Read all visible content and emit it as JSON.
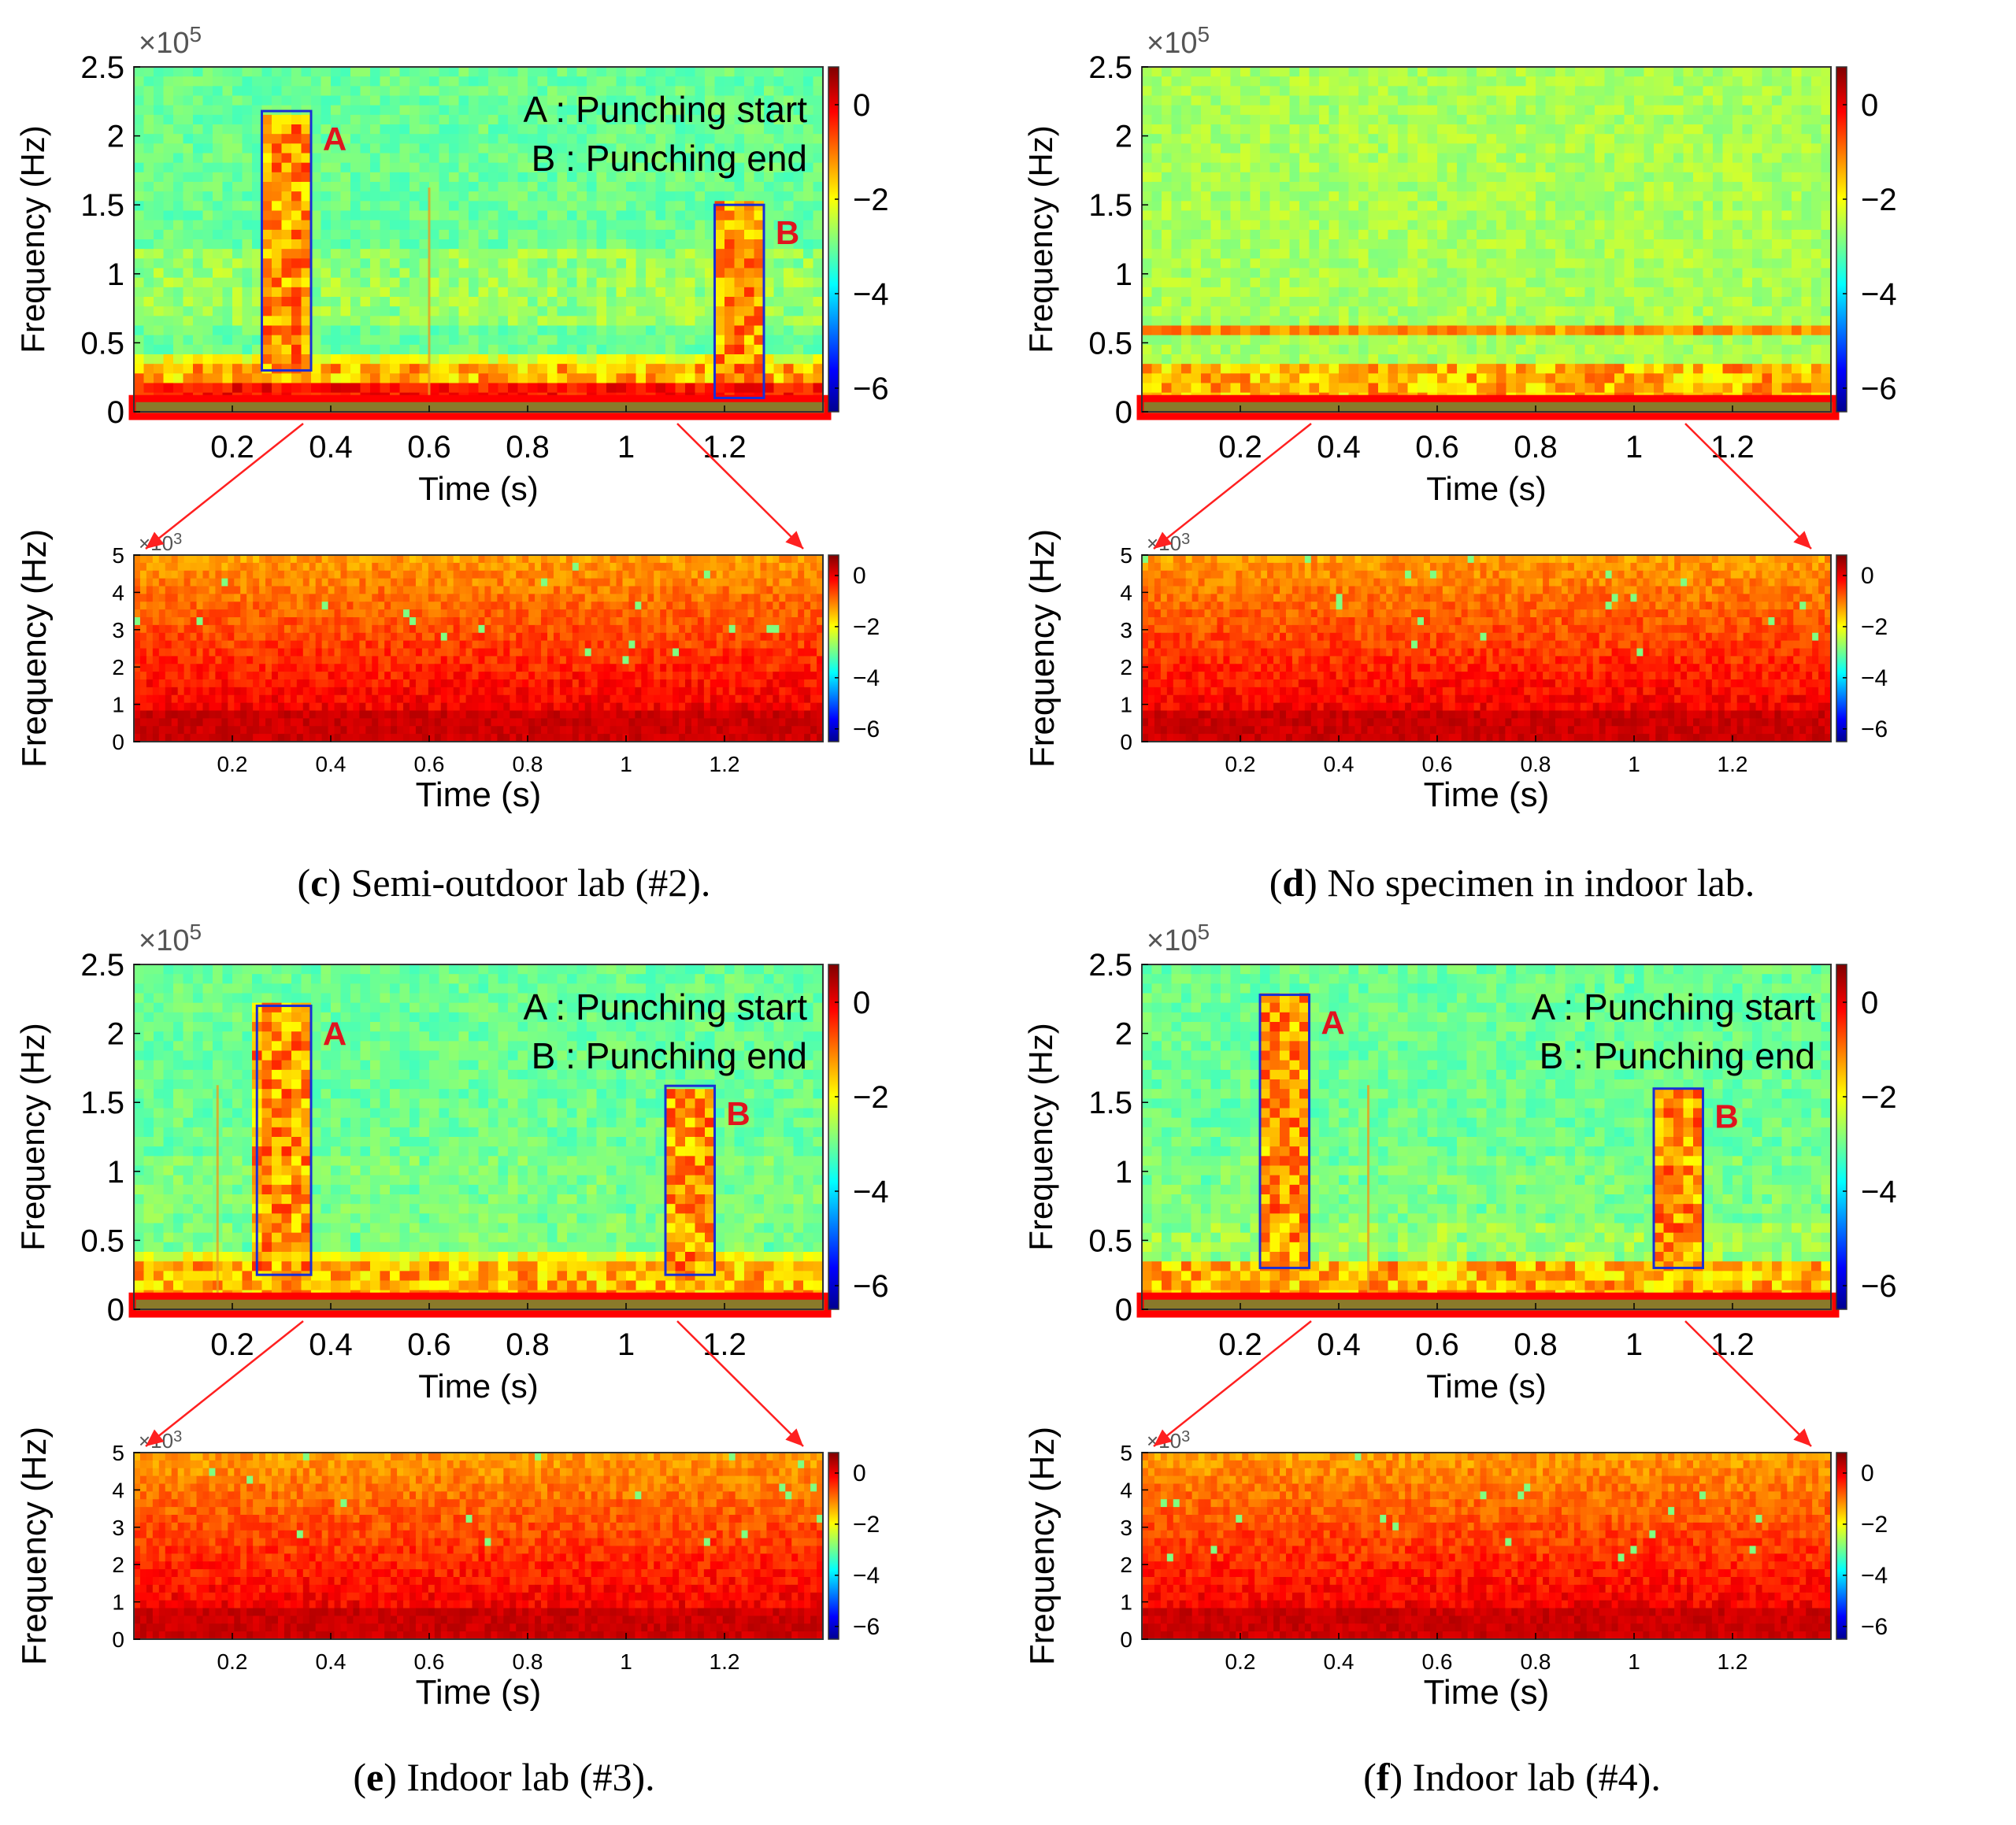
{
  "chart_data": [
    {
      "id": "c",
      "type": "heatmap",
      "caption_letter": "c",
      "caption_text": " Semi-outdoor lab (#2).",
      "top": {
        "xlabel": "Time (s)",
        "ylabel": "Frequency (Hz)",
        "xticks": [
          "0.2",
          "0.4",
          "0.6",
          "0.8",
          "1",
          "1.2"
        ],
        "xtick_values": [
          0.2,
          0.4,
          0.6,
          0.8,
          1.0,
          1.2
        ],
        "xlim": [
          0,
          1.4
        ],
        "yticks": [
          "0",
          "0.5",
          "1",
          "1.5",
          "2",
          "2.5"
        ],
        "ytick_values": [
          0,
          0.5,
          1,
          1.5,
          2,
          2.5
        ],
        "ylim": [
          0,
          2.5
        ],
        "multiplier": "×10",
        "multiplier_exp": "5",
        "colorbar_ticks": [
          "0",
          "−2",
          "−4",
          "−6"
        ],
        "colorbar_values": [
          0,
          -2,
          -4,
          -6
        ],
        "colorbar_range": [
          -6.5,
          0.8
        ],
        "background": "green",
        "bands": [
          [
            0.2,
            0.45,
            0.55
          ],
          [
            0.6,
            1.15,
            0.45
          ],
          [
            0.1,
            0.2,
            0.85
          ]
        ],
        "boxes": [
          {
            "label": "A",
            "x0": 0.26,
            "x1": 0.36,
            "y0": 0.3,
            "y1": 2.18
          },
          {
            "label": "B",
            "x0": 1.18,
            "x1": 1.28,
            "y0": 0.1,
            "y1": 1.5
          }
        ],
        "vlines": [
          0.6
        ],
        "legend": [
          "A : Punching start",
          "B : Punching end"
        ],
        "zoom_band": [
          0,
          0.05
        ]
      },
      "bottom": {
        "xlabel": "Time (s)",
        "ylabel": "Frequency (Hz)",
        "xticks": [
          "0.2",
          "0.4",
          "0.6",
          "0.8",
          "1",
          "1.2"
        ],
        "xtick_values": [
          0.2,
          0.4,
          0.6,
          0.8,
          1.0,
          1.2
        ],
        "xlim": [
          0,
          1.4
        ],
        "yticks": [
          "0",
          "1",
          "2",
          "3",
          "4",
          "5"
        ],
        "ytick_values": [
          0,
          1,
          2,
          3,
          4,
          5
        ],
        "ylim": [
          0,
          5
        ],
        "multiplier": "×10",
        "multiplier_exp": "3",
        "colorbar_ticks": [
          "0",
          "−2",
          "−4",
          "−6"
        ],
        "colorbar_values": [
          0,
          -2,
          -4,
          -6
        ],
        "colorbar_range": [
          -6.5,
          0.8
        ]
      }
    },
    {
      "id": "d",
      "type": "heatmap",
      "caption_letter": "d",
      "caption_text": " No specimen in indoor lab.",
      "top": {
        "xlabel": "Time (s)",
        "ylabel": "Frequency (Hz)",
        "xticks": [
          "0.2",
          "0.4",
          "0.6",
          "0.8",
          "1",
          "1.2"
        ],
        "xtick_values": [
          0.2,
          0.4,
          0.6,
          0.8,
          1.0,
          1.2
        ],
        "xlim": [
          0,
          1.4
        ],
        "yticks": [
          "0",
          "0.5",
          "1",
          "1.5",
          "2",
          "2.5"
        ],
        "ytick_values": [
          0,
          0.5,
          1,
          1.5,
          2,
          2.5
        ],
        "ylim": [
          0,
          2.5
        ],
        "multiplier": "×10",
        "multiplier_exp": "5",
        "colorbar_ticks": [
          "0",
          "−2",
          "−4",
          "−6"
        ],
        "colorbar_values": [
          0,
          -2,
          -4,
          -6
        ],
        "colorbar_range": [
          -6.5,
          0.8
        ],
        "background": "lightgreen",
        "bands": [
          [
            0.55,
            0.62,
            0.7
          ]
        ],
        "boxes": [],
        "vlines": [],
        "legend": [],
        "zoom_band": [
          0,
          0.05
        ]
      },
      "bottom": {
        "xlabel": "Time (s)",
        "ylabel": "Frequency (Hz)",
        "xticks": [
          "0.2",
          "0.4",
          "0.6",
          "0.8",
          "1",
          "1.2"
        ],
        "xtick_values": [
          0.2,
          0.4,
          0.6,
          0.8,
          1.0,
          1.2
        ],
        "xlim": [
          0,
          1.4
        ],
        "yticks": [
          "0",
          "1",
          "2",
          "3",
          "4",
          "5"
        ],
        "ytick_values": [
          0,
          1,
          2,
          3,
          4,
          5
        ],
        "ylim": [
          0,
          5
        ],
        "multiplier": "×10",
        "multiplier_exp": "3",
        "colorbar_ticks": [
          "0",
          "−2",
          "−4",
          "−6"
        ],
        "colorbar_values": [
          0,
          -2,
          -4,
          -6
        ],
        "colorbar_range": [
          -6.5,
          0.8
        ]
      }
    },
    {
      "id": "e",
      "type": "heatmap",
      "caption_letter": "e",
      "caption_text": " Indoor lab (#3).",
      "top": {
        "xlabel": "Time (s)",
        "ylabel": "Frequency (Hz)",
        "xticks": [
          "0.2",
          "0.4",
          "0.6",
          "0.8",
          "1",
          "1.2"
        ],
        "xtick_values": [
          0.2,
          0.4,
          0.6,
          0.8,
          1.0,
          1.2
        ],
        "xlim": [
          0,
          1.4
        ],
        "yticks": [
          "0",
          "0.5",
          "1",
          "1.5",
          "2",
          "2.5"
        ],
        "ytick_values": [
          0,
          0.5,
          1,
          1.5,
          2,
          2.5
        ],
        "ylim": [
          0,
          2.5
        ],
        "multiplier": "×10",
        "multiplier_exp": "5",
        "colorbar_ticks": [
          "0",
          "−2",
          "−4",
          "−6"
        ],
        "colorbar_values": [
          0,
          -2,
          -4,
          -6
        ],
        "colorbar_range": [
          -6.5,
          0.8
        ],
        "background": "green",
        "bands": [
          [
            0.2,
            0.4,
            0.55
          ],
          [
            0.4,
            1.1,
            0.4
          ]
        ],
        "boxes": [
          {
            "label": "A",
            "x0": 0.25,
            "x1": 0.36,
            "y0": 0.25,
            "y1": 2.2
          },
          {
            "label": "B",
            "x0": 1.08,
            "x1": 1.18,
            "y0": 0.25,
            "y1": 1.62
          }
        ],
        "vlines": [
          0.17
        ],
        "legend": [
          "A : Punching start",
          "B : Punching end"
        ],
        "zoom_band": [
          0,
          0.05
        ]
      },
      "bottom": {
        "xlabel": "Time (s)",
        "ylabel": "Frequency (Hz)",
        "xticks": [
          "0.2",
          "0.4",
          "0.6",
          "0.8",
          "1",
          "1.2"
        ],
        "xtick_values": [
          0.2,
          0.4,
          0.6,
          0.8,
          1.0,
          1.2
        ],
        "xlim": [
          0,
          1.4
        ],
        "yticks": [
          "0",
          "1",
          "2",
          "3",
          "4",
          "5"
        ],
        "ytick_values": [
          0,
          1,
          2,
          3,
          4,
          5
        ],
        "ylim": [
          0,
          5
        ],
        "multiplier": "×10",
        "multiplier_exp": "3",
        "colorbar_ticks": [
          "0",
          "−2",
          "−4",
          "−6"
        ],
        "colorbar_values": [
          0,
          -2,
          -4,
          -6
        ],
        "colorbar_range": [
          -6.5,
          0.8
        ]
      }
    },
    {
      "id": "f",
      "type": "heatmap",
      "caption_letter": "f",
      "caption_text": " Indoor lab (#4).",
      "top": {
        "xlabel": "Time (s)",
        "ylabel": "Frequency (Hz)",
        "xticks": [
          "0.2",
          "0.4",
          "0.6",
          "0.8",
          "1",
          "1.2"
        ],
        "xtick_values": [
          0.2,
          0.4,
          0.6,
          0.8,
          1.0,
          1.2
        ],
        "xlim": [
          0,
          1.4
        ],
        "yticks": [
          "0",
          "0.5",
          "1",
          "1.5",
          "2",
          "2.5"
        ],
        "ytick_values": [
          0,
          0.5,
          1,
          1.5,
          2,
          2.5
        ],
        "ylim": [
          0,
          2.5
        ],
        "multiplier": "×10",
        "multiplier_exp": "5",
        "colorbar_ticks": [
          "0",
          "−2",
          "−4",
          "−6"
        ],
        "colorbar_values": [
          0,
          -2,
          -4,
          -6
        ],
        "colorbar_range": [
          -6.5,
          0.8
        ],
        "background": "green",
        "bands": [
          [
            0.2,
            0.6,
            0.45
          ],
          [
            0.6,
            1.1,
            0.4
          ]
        ],
        "boxes": [
          {
            "label": "A",
            "x0": 0.24,
            "x1": 0.34,
            "y0": 0.3,
            "y1": 2.28
          },
          {
            "label": "B",
            "x0": 1.04,
            "x1": 1.14,
            "y0": 0.3,
            "y1": 1.6
          }
        ],
        "vlines": [
          0.46
        ],
        "legend": [
          "A : Punching start",
          "B : Punching end"
        ],
        "zoom_band": [
          0,
          0.05
        ]
      },
      "bottom": {
        "xlabel": "Time (s)",
        "ylabel": "Frequency (Hz)",
        "xticks": [
          "0.2",
          "0.4",
          "0.6",
          "0.8",
          "1",
          "1.2"
        ],
        "xtick_values": [
          0.2,
          0.4,
          0.6,
          0.8,
          1.0,
          1.2
        ],
        "xlim": [
          0,
          1.4
        ],
        "yticks": [
          "0",
          "1",
          "2",
          "3",
          "4",
          "5"
        ],
        "ytick_values": [
          0,
          1,
          2,
          3,
          4,
          5
        ],
        "ylim": [
          0,
          5
        ],
        "multiplier": "×10",
        "multiplier_exp": "3",
        "colorbar_ticks": [
          "0",
          "−2",
          "−4",
          "−6"
        ],
        "colorbar_values": [
          0,
          -2,
          -4,
          -6
        ],
        "colorbar_range": [
          -6.5,
          0.8
        ]
      }
    }
  ]
}
